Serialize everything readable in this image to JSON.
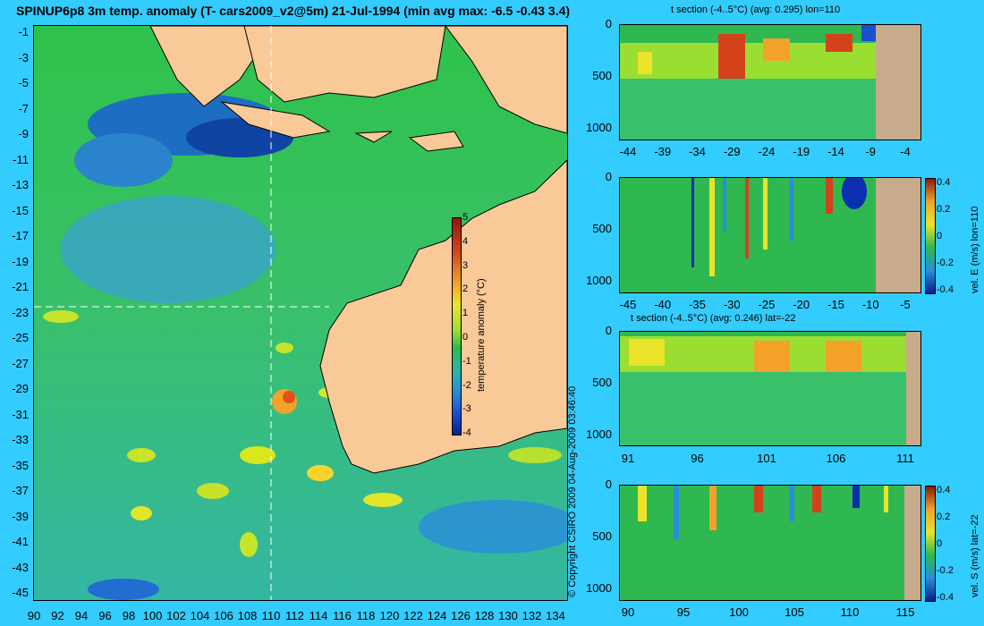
{
  "title": "SPINUP6p8 3m temp. anomaly (T- cars2009_v2@5m) 21-Jul-1994 (min avg max: -6.5 -0.43 3.4)",
  "copyright": "© Copyright CSIRO 2009   04-Aug-2009 03:46:40",
  "map": {
    "lon_ticks": [
      "90",
      "92",
      "94",
      "96",
      "98",
      "100",
      "102",
      "104",
      "106",
      "108",
      "110",
      "112",
      "114",
      "116",
      "118",
      "120",
      "122",
      "124",
      "126",
      "128",
      "130",
      "132",
      "134"
    ],
    "lat_ticks": [
      "-1",
      "-3",
      "-5",
      "-7",
      "-9",
      "-11",
      "-13",
      "-15",
      "-17",
      "-19",
      "-21",
      "-23",
      "-25",
      "-27",
      "-29",
      "-31",
      "-33",
      "-35",
      "-37",
      "-39",
      "-41",
      "-43",
      "-45"
    ],
    "crosshair": {
      "lon": 110,
      "lat": -22
    }
  },
  "colorbar_main": {
    "label": "temperature anomaly (°C)",
    "ticks": [
      "5",
      "4",
      "3",
      "2",
      "1",
      "0",
      "-1",
      "-2",
      "-3",
      "-4"
    ],
    "range": [
      -4,
      5
    ]
  },
  "panels": [
    {
      "id": "t-section-lon",
      "title": "t section (-4..5°C) (avg: 0.295) lon=110",
      "x_ticks": [
        "-44",
        "-39",
        "-34",
        "-29",
        "-24",
        "-19",
        "-14",
        "-9",
        "-4"
      ],
      "y_ticks": [
        "0",
        "500",
        "1000"
      ],
      "colorbar_label": "",
      "colorbar_ticks": []
    },
    {
      "id": "vel-e-lon",
      "title": "",
      "x_ticks": [
        "-45",
        "-40",
        "-35",
        "-30",
        "-25",
        "-20",
        "-15",
        "-10",
        "-5"
      ],
      "y_ticks": [
        "0",
        "500",
        "1000"
      ],
      "colorbar_label": "vel. E (m/s) lon=110",
      "colorbar_ticks": [
        "0.4",
        "0.2",
        "0",
        "-0.2",
        "-0.4"
      ]
    },
    {
      "id": "t-section-lat",
      "title": "t section (-4..5°C) (avg: 0.246) lat=-22",
      "x_ticks": [
        "91",
        "96",
        "101",
        "106",
        "111"
      ],
      "y_ticks": [
        "0",
        "500",
        "1000"
      ],
      "colorbar_label": "",
      "colorbar_ticks": []
    },
    {
      "id": "vel-s-lat",
      "title": "",
      "x_ticks": [
        "90",
        "95",
        "100",
        "105",
        "110",
        "115"
      ],
      "y_ticks": [
        "0",
        "500",
        "1000"
      ],
      "colorbar_label": "vel. S (m/s) lat=-22",
      "colorbar_ticks": [
        "0.4",
        "0.2",
        "0",
        "-0.2",
        "-0.4"
      ]
    }
  ],
  "colors": {
    "background": "#33ccff",
    "land": "#f9c998",
    "ocean": "#2fb84f",
    "section_land": "#c8aa8c"
  }
}
